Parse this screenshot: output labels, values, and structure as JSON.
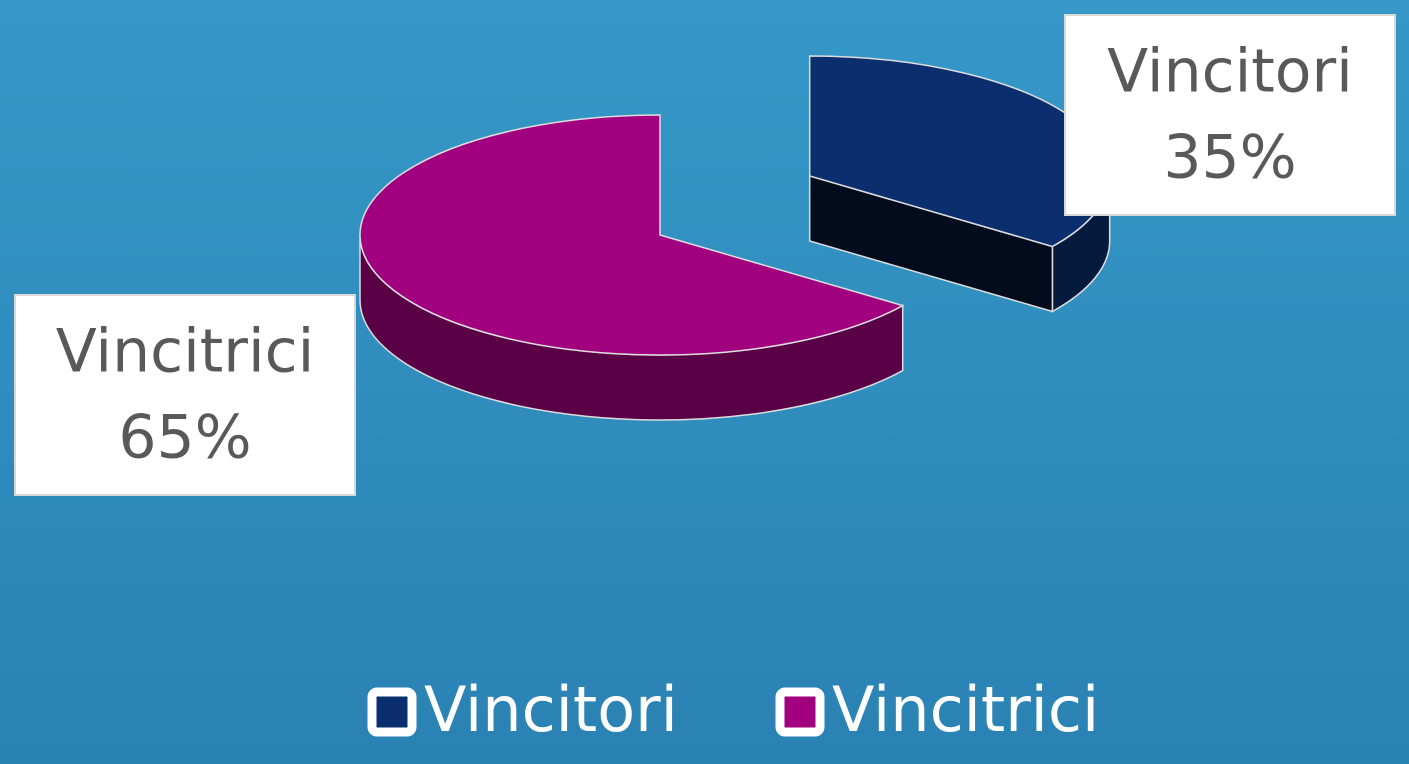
{
  "chart_data": {
    "type": "pie3d",
    "categories": [
      "Vincitori",
      "Vincitrici"
    ],
    "values": [
      35,
      65
    ],
    "value_labels": [
      "35%",
      "65%"
    ],
    "colors": [
      "#0b2f6e",
      "#a1007f"
    ],
    "legend": "bottom"
  }
}
